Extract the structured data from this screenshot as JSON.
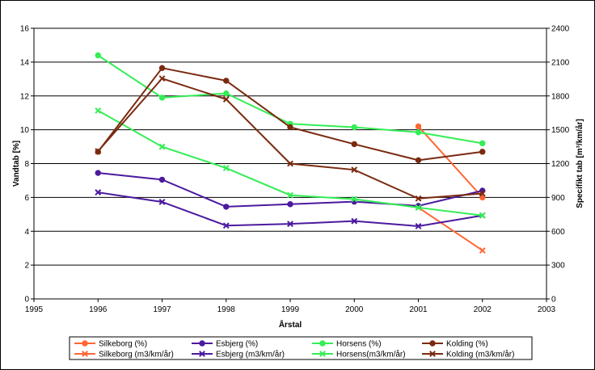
{
  "chart_data": {
    "type": "line",
    "xlabel": "Årstal",
    "ylabel_left": "Vandtab [%]",
    "ylabel_right": "Specifikt tab [m³/km/år]",
    "xlim": [
      1995,
      2003
    ],
    "x_ticks": [
      1995,
      1996,
      1997,
      1998,
      1999,
      2000,
      2001,
      2002,
      2003
    ],
    "ylim_left": [
      0,
      16
    ],
    "y_ticks_left": [
      0,
      2,
      4,
      6,
      8,
      10,
      12,
      14,
      16
    ],
    "ylim_right": [
      0,
      2400
    ],
    "y_ticks_right": [
      0,
      300,
      600,
      900,
      1200,
      1500,
      1800,
      2100,
      2400
    ],
    "grid": "horizontal",
    "legend_position": "bottom",
    "series": [
      {
        "name": "Silkeborg (%)",
        "axis": "left",
        "marker": "circle",
        "color": "#ff6633",
        "x": [
          2001,
          2002
        ],
        "y": [
          10.2,
          6.0
        ]
      },
      {
        "name": "Silkeborg (m3/km/år)",
        "axis": "right",
        "marker": "x",
        "color": "#ff6633",
        "x": [
          2001,
          2002
        ],
        "y": [
          810,
          430
        ]
      },
      {
        "name": "Esbjerg (%)",
        "axis": "left",
        "marker": "circle",
        "color": "#4b1a9e",
        "x": [
          1996,
          1997,
          1998,
          1999,
          2000,
          2001,
          2002
        ],
        "y": [
          7.45,
          7.05,
          5.45,
          5.6,
          5.75,
          5.5,
          6.4
        ]
      },
      {
        "name": "Esbjerg (m3/km/år)",
        "axis": "right",
        "marker": "x",
        "color": "#4b1a9e",
        "x": [
          1996,
          1997,
          1998,
          1999,
          2000,
          2001,
          2002
        ],
        "y": [
          945,
          860,
          650,
          665,
          690,
          645,
          740
        ]
      },
      {
        "name": "Horsens (%)",
        "axis": "left",
        "marker": "circle",
        "color": "#33ee55",
        "x": [
          1996,
          1997,
          1998,
          1999,
          2000,
          2001,
          2002
        ],
        "y": [
          14.4,
          11.9,
          12.15,
          10.35,
          10.15,
          9.85,
          9.2
        ]
      },
      {
        "name": "Horsens(m3/km/år)",
        "axis": "right",
        "marker": "x",
        "color": "#33ee55",
        "x": [
          1996,
          1997,
          1998,
          1999,
          2000,
          2001,
          2002
        ],
        "y": [
          1670,
          1350,
          1160,
          920,
          885,
          810,
          740
        ]
      },
      {
        "name": "Kolding (%)",
        "axis": "left",
        "marker": "circle",
        "color": "#7a2a10",
        "x": [
          1996,
          1997,
          1998,
          1999,
          2000,
          2001,
          2002
        ],
        "y": [
          8.7,
          13.65,
          12.9,
          10.15,
          9.15,
          8.2,
          8.7
        ]
      },
      {
        "name": "Kolding (m3/km/år)",
        "axis": "right",
        "marker": "x",
        "color": "#7a2a10",
        "x": [
          1996,
          1997,
          1998,
          1999,
          2000,
          2001,
          2002
        ],
        "y": [
          1310,
          1955,
          1770,
          1200,
          1145,
          890,
          935
        ]
      }
    ]
  }
}
